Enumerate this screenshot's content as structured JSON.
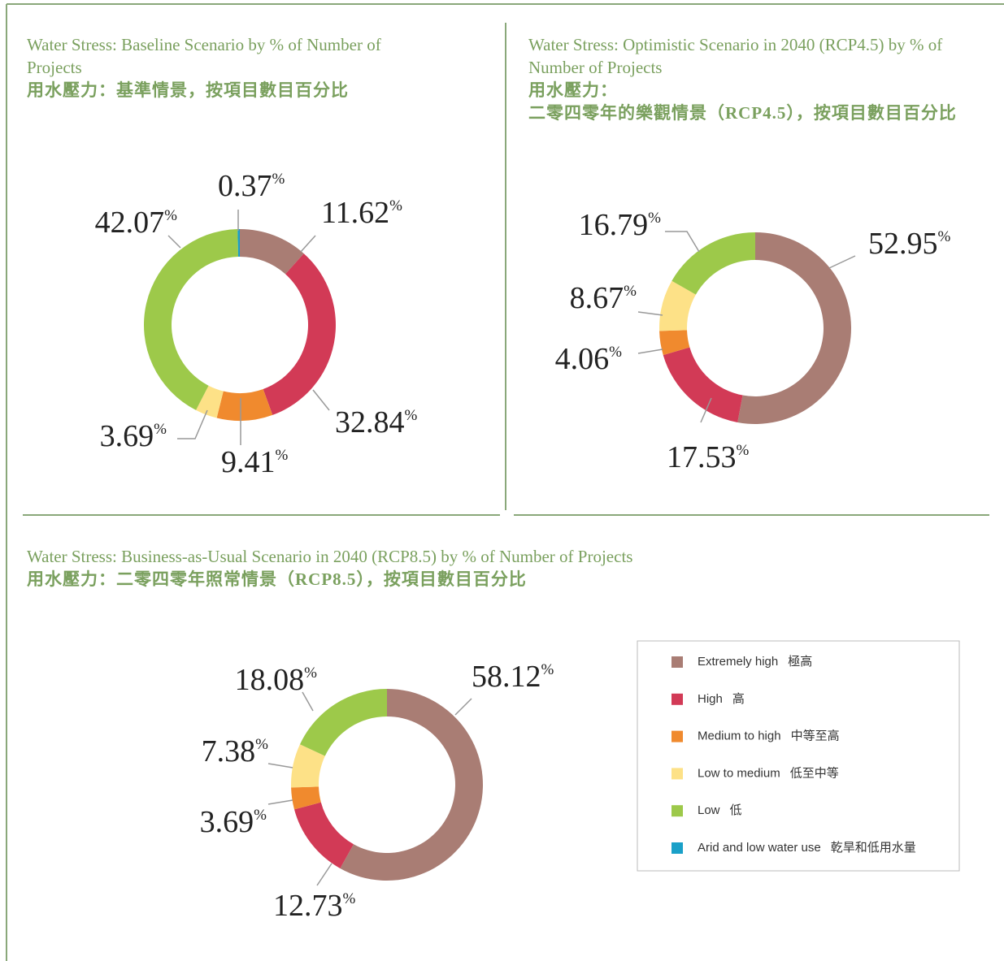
{
  "legend": {
    "items": [
      {
        "name": "Extremely high",
        "name_zh": "極高",
        "color": "#a97d74"
      },
      {
        "name": "High",
        "name_zh": "高",
        "color": "#d23a56"
      },
      {
        "name": "Medium to high",
        "name_zh": "中等至高",
        "color": "#f08a2e"
      },
      {
        "name": "Low to medium",
        "name_zh": "低至中等",
        "color": "#fde187"
      },
      {
        "name": "Low",
        "name_zh": "低",
        "color": "#9dc94a"
      },
      {
        "name": "Arid and low water use",
        "name_zh": "乾旱和低用水量",
        "color": "#1aa0c8"
      }
    ]
  },
  "chart_data": [
    {
      "type": "pie",
      "title": "Water Stress: Baseline Scenario by % of Number of Projects",
      "subtitle": [
        "用水壓力：基準情景，按項目數目百分比"
      ],
      "values": [
        11.62,
        32.84,
        9.41,
        3.69,
        42.07,
        0.37
      ],
      "value_labels": [
        "11.62%",
        "32.84%",
        "9.41%",
        "3.69%",
        "42.07%",
        "0.37%"
      ]
    },
    {
      "type": "pie",
      "title": "Water Stress: Optimistic Scenario in 2040 (RCP4.5) by % of Number of Projects",
      "subtitle": [
        "用水壓力：",
        "二零四零年的樂觀情景（RCP4.5），按項目數目百分比"
      ],
      "values": [
        52.95,
        17.53,
        4.06,
        8.67,
        16.79,
        null
      ],
      "value_labels": [
        "52.95%",
        "17.53%",
        "4.06%",
        "8.67%",
        "16.79%",
        null
      ]
    },
    {
      "type": "pie",
      "title": "Water Stress: Business-as-Usual Scenario in 2040 (RCP8.5) by % of Number of Projects",
      "subtitle": [
        "用水壓力：二零四零年照常情景（RCP8.5），按項目數目百分比"
      ],
      "values": [
        58.12,
        12.73,
        3.69,
        7.38,
        18.08,
        null
      ],
      "value_labels": [
        "58.12%",
        "12.73%",
        "3.69%",
        "7.38%",
        "18.08%",
        null
      ]
    }
  ]
}
